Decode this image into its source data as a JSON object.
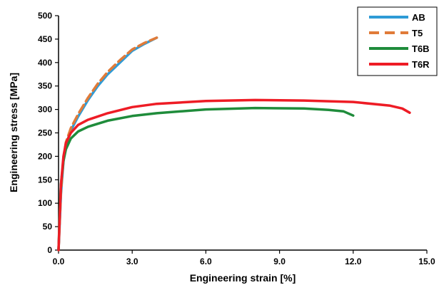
{
  "chart_data": {
    "type": "line",
    "xlabel": "Engineering strain [%]",
    "ylabel": "Engineering stress [MPa]",
    "xlim": [
      0,
      15
    ],
    "ylim": [
      0,
      500
    ],
    "x_ticks": [
      "0.0",
      "3.0",
      "6.0",
      "9.0",
      "12.0",
      "15.0"
    ],
    "y_ticks": [
      "0",
      "50",
      "100",
      "150",
      "200",
      "250",
      "300",
      "350",
      "400",
      "450",
      "500"
    ],
    "grid": false,
    "legend_position": "top-right",
    "series": [
      {
        "name": "AB",
        "color": "#2e9bd6",
        "dash": "solid",
        "x": [
          0.0,
          0.1,
          0.2,
          0.3,
          0.5,
          0.8,
          1.2,
          1.6,
          2.0,
          2.5,
          3.0,
          3.5,
          4.0
        ],
        "y": [
          0,
          120,
          190,
          225,
          255,
          285,
          320,
          350,
          375,
          400,
          425,
          440,
          453
        ]
      },
      {
        "name": "T5",
        "color": "#e07b39",
        "dash": "dashed",
        "x": [
          0.0,
          0.1,
          0.2,
          0.3,
          0.5,
          0.8,
          1.2,
          1.6,
          2.0,
          2.5,
          3.0,
          3.5,
          4.0
        ],
        "y": [
          0,
          125,
          195,
          230,
          260,
          290,
          325,
          355,
          380,
          405,
          428,
          442,
          453
        ]
      },
      {
        "name": "T6B",
        "color": "#1f8c3b",
        "dash": "solid",
        "x": [
          0.0,
          0.05,
          0.1,
          0.2,
          0.3,
          0.5,
          0.8,
          1.2,
          2.0,
          3.0,
          4.0,
          6.0,
          8.0,
          10.0,
          11.0,
          11.6,
          12.0
        ],
        "y": [
          0,
          80,
          140,
          190,
          215,
          238,
          253,
          263,
          276,
          286,
          292,
          300,
          303,
          302,
          299,
          296,
          287
        ]
      },
      {
        "name": "T6R",
        "color": "#ee1c25",
        "dash": "solid",
        "x": [
          0.0,
          0.05,
          0.1,
          0.2,
          0.3,
          0.5,
          0.8,
          1.2,
          2.0,
          3.0,
          4.0,
          6.0,
          8.0,
          10.0,
          12.0,
          13.5,
          14.0,
          14.3
        ],
        "y": [
          0,
          70,
          140,
          200,
          228,
          250,
          267,
          278,
          292,
          305,
          312,
          318,
          320,
          319,
          316,
          308,
          302,
          293
        ]
      }
    ]
  }
}
